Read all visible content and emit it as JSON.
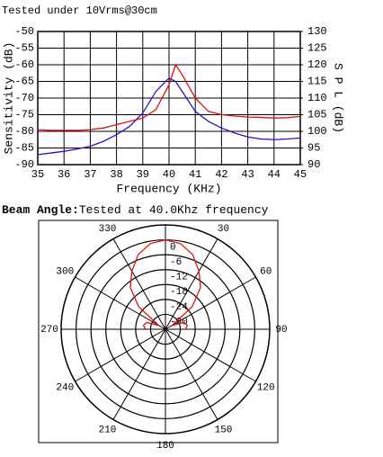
{
  "chart_data": [
    {
      "type": "line",
      "title": "Tested under 10Vrms@30cm",
      "x": [
        35,
        35.5,
        36,
        36.5,
        37,
        37.5,
        38,
        38.5,
        39,
        39.5,
        40,
        40.25,
        40.5,
        41,
        41.5,
        42,
        42.5,
        43,
        43.5,
        44,
        44.5,
        45
      ],
      "xlim": [
        35,
        45
      ],
      "xticks": [
        35,
        36,
        37,
        38,
        39,
        40,
        41,
        42,
        43,
        44,
        45
      ],
      "xlabel": "Frequency (KHz)",
      "ylim": [
        -90,
        -50
      ],
      "yticks": [
        -50,
        -55,
        -60,
        -65,
        -70,
        -75,
        -80,
        -85,
        -90
      ],
      "ylabel": "Sensitivity (dB)",
      "ycolor": "#1a1aa6",
      "y2lim": [
        90,
        130
      ],
      "y2ticks": [
        130,
        125,
        120,
        115,
        110,
        105,
        100,
        95,
        90
      ],
      "y2label": "S P L (dB)",
      "y2color": "#e01010",
      "grid": true,
      "series": [
        {
          "color": "#1a1acc",
          "values": [
            -87,
            -86.5,
            -86,
            -85.3,
            -84.5,
            -83,
            -81,
            -78.5,
            -74.5,
            -68,
            -64,
            -65,
            -68,
            -74,
            -77,
            -79,
            -80.5,
            -81.7,
            -82.3,
            -82.5,
            -82.3,
            -82
          ]
        },
        {
          "color": "#e01010",
          "axis": "y2",
          "values": [
            100.5,
            100.3,
            100.3,
            100.3,
            100.5,
            101,
            102,
            103,
            104,
            106.5,
            114,
            120,
            117,
            110,
            106,
            105,
            104.6,
            104.3,
            104.2,
            104,
            104.1,
            104.5
          ]
        }
      ]
    },
    {
      "type": "polar",
      "title_label": "Beam Angle:",
      "title": "Tested at 40.0Khz frequency",
      "thetaticks": [
        30,
        60,
        90,
        120,
        150,
        180,
        210,
        240,
        270,
        300,
        330
      ],
      "rlim": [
        -36,
        6
      ],
      "rticks": [
        0,
        -6,
        -12,
        -18,
        -24,
        -30
      ],
      "rcolor": "#e01010",
      "series": [
        {
          "color": "#e01010",
          "theta": [
            -90,
            -80,
            -70,
            -60,
            -50,
            -40,
            -30,
            -20,
            -10,
            0,
            10,
            20,
            30,
            40,
            50,
            60,
            70,
            80,
            90
          ],
          "values": [
            -28,
            -27,
            -28,
            -33,
            -22,
            -14,
            -9,
            -4,
            -1,
            0,
            -1,
            -4,
            -9,
            -14,
            -22,
            -33,
            -28,
            -27,
            -28
          ]
        }
      ]
    }
  ]
}
